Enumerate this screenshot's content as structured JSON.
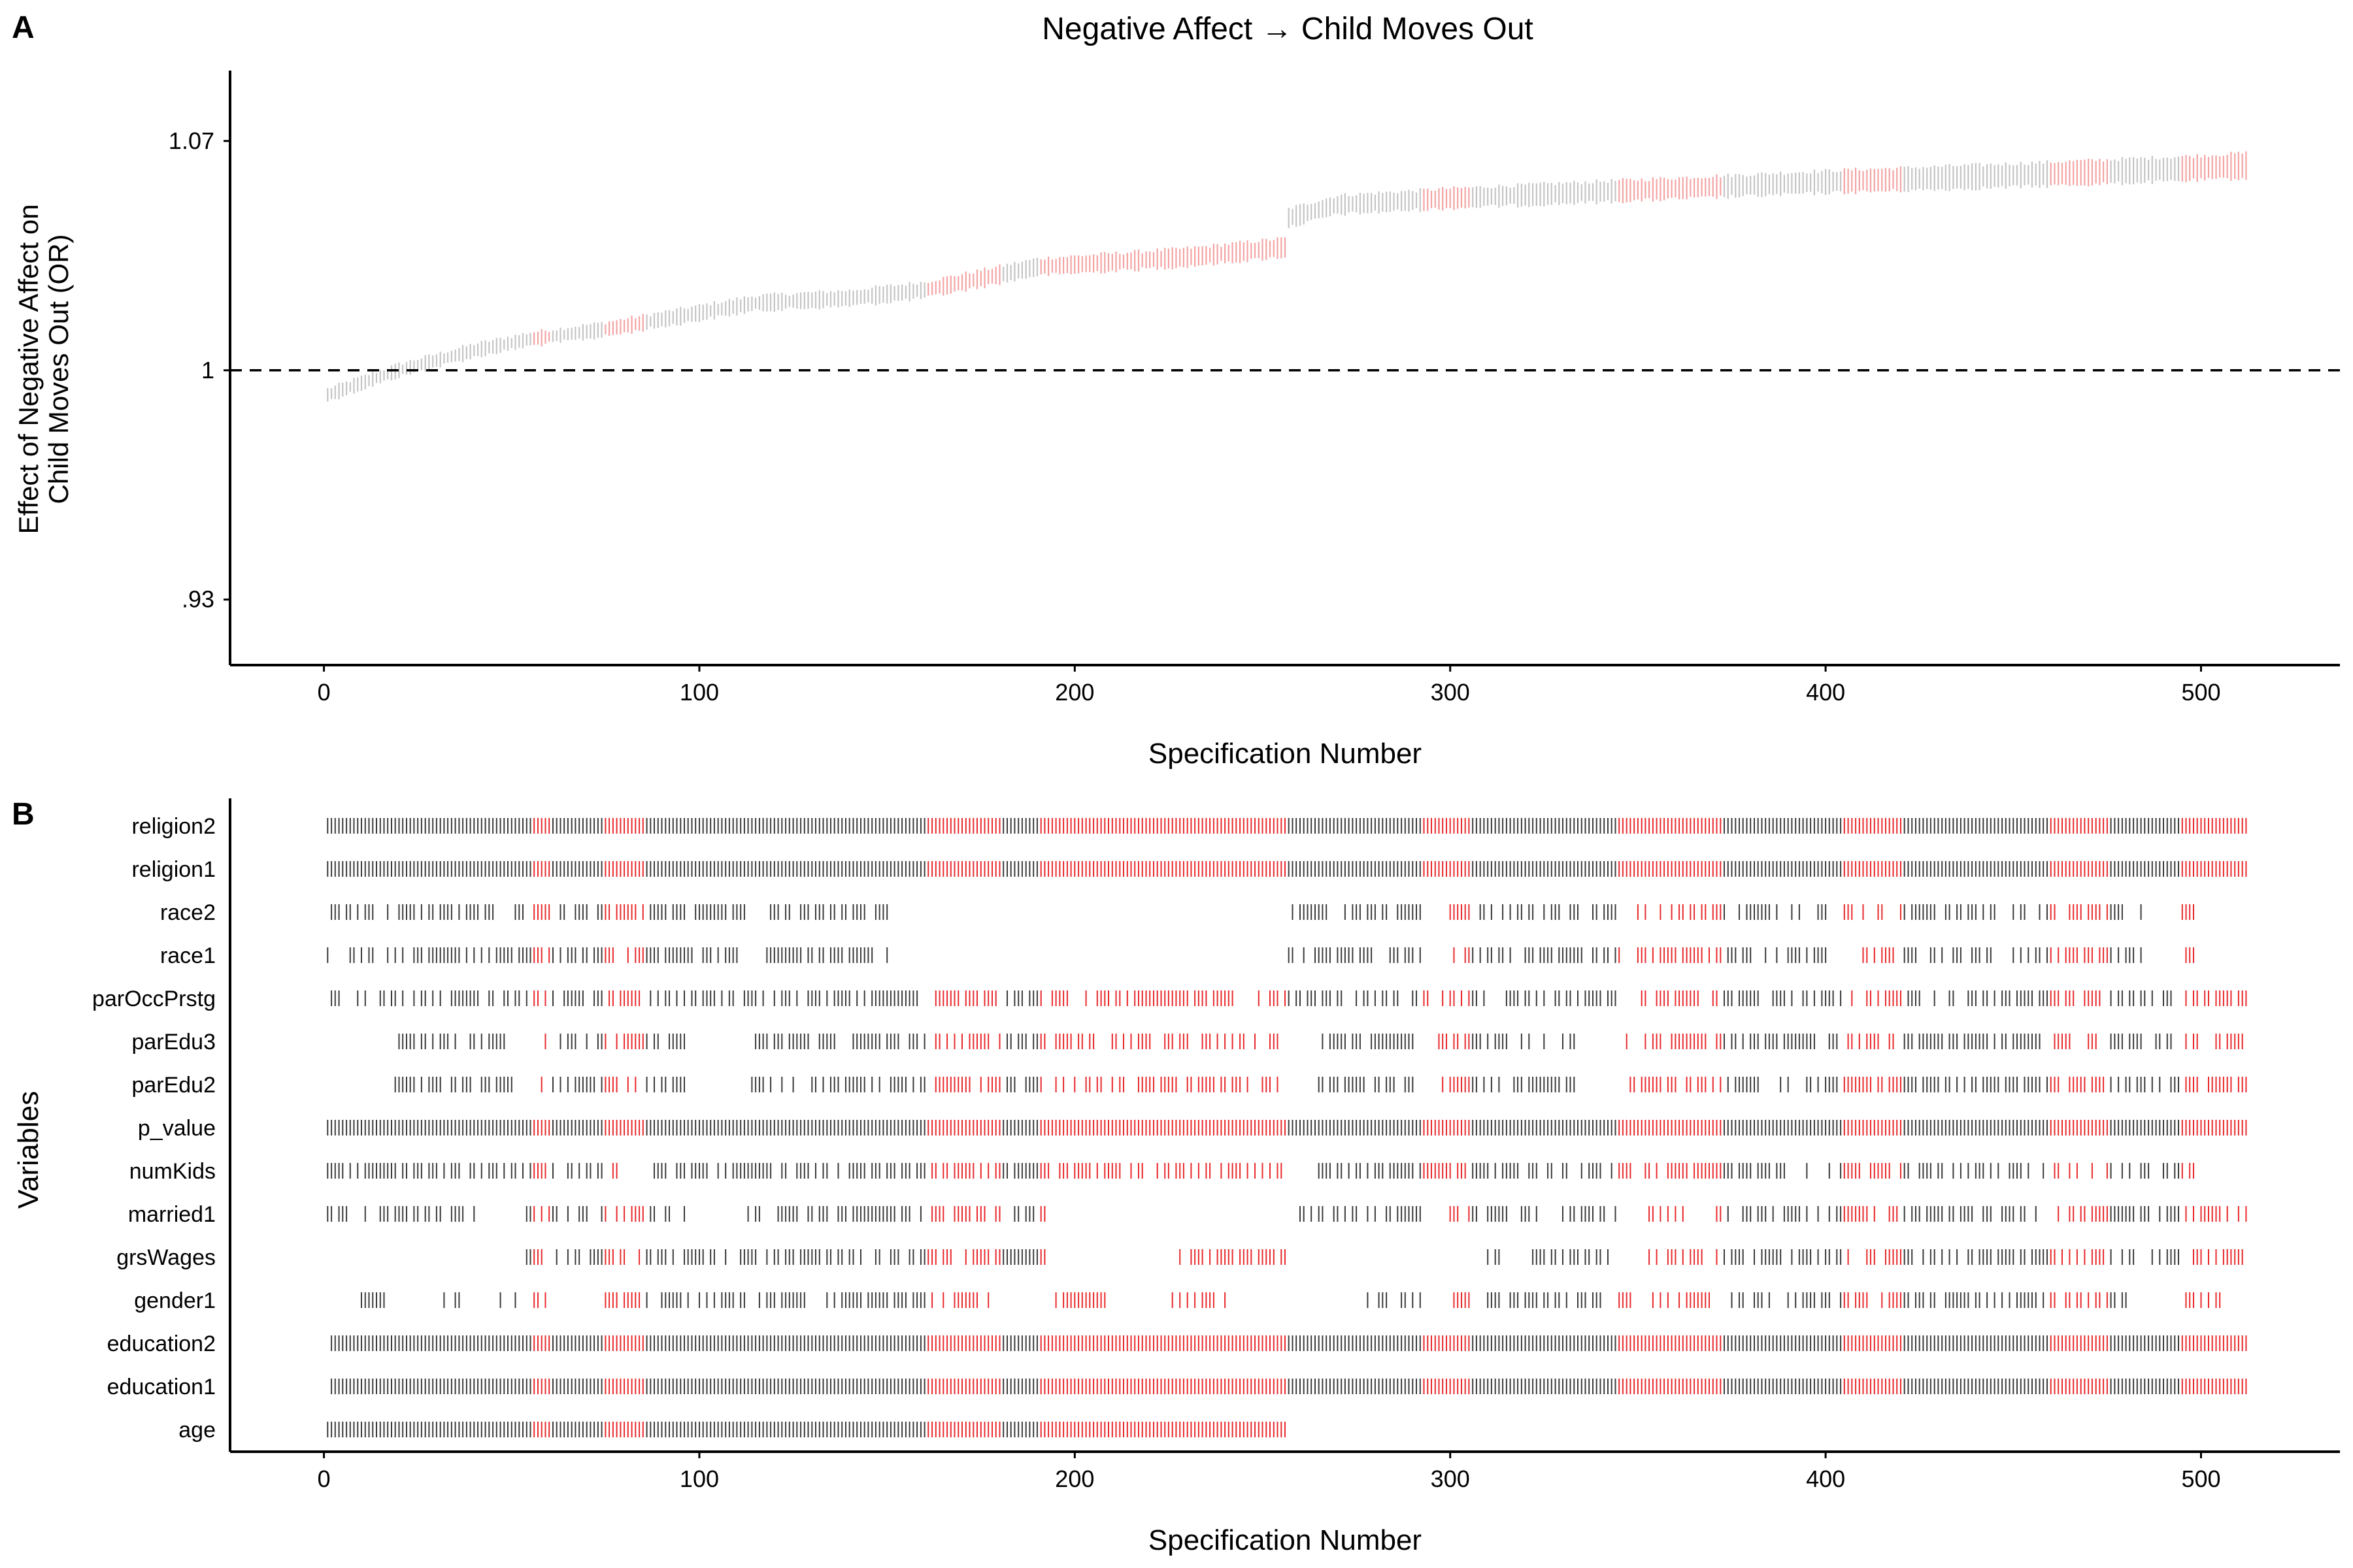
{
  "panels": {
    "a_label": "A",
    "b_label": "B"
  },
  "chart_data": [
    {
      "type": "scatter",
      "title": "Negative Affect → Child Moves Out",
      "xlabel": "Specification Number",
      "ylabel_lines": [
        "Effect of Negative Affect on",
        "Child Moves Out (OR)"
      ],
      "xlim": [
        -25,
        537
      ],
      "ylim": [
        0.91,
        1.0915
      ],
      "xticks": [
        0,
        100,
        200,
        300,
        400,
        500
      ],
      "yticks": [
        {
          "value": 0.93,
          "label": ".93"
        },
        {
          "value": 1.0,
          "label": "1"
        },
        {
          "value": 1.07,
          "label": "1.07"
        }
      ],
      "reference_line": {
        "y": 1.0,
        "style": "dashed"
      },
      "n_specifications": 512,
      "curve_knots": [
        [
          1,
          0.9925
        ],
        [
          20,
          1.0
        ],
        [
          40,
          1.006
        ],
        [
          55,
          1.0095
        ],
        [
          75,
          1.0125
        ],
        [
          95,
          1.0165
        ],
        [
          115,
          1.0205
        ],
        [
          140,
          1.022
        ],
        [
          160,
          1.0245
        ],
        [
          190,
          1.0315
        ],
        [
          230,
          1.0345
        ],
        [
          256,
          1.0375
        ],
        [
          257,
          1.0465
        ],
        [
          270,
          1.0505
        ],
        [
          300,
          1.0525
        ],
        [
          350,
          1.055
        ],
        [
          400,
          1.0575
        ],
        [
          450,
          1.0595
        ],
        [
          495,
          1.0615
        ],
        [
          512,
          1.0625
        ]
      ],
      "ci_halfwidth_range": [
        0.0012,
        0.0045
      ],
      "significant_ranges": [
        [
          56,
          60
        ],
        [
          75,
          85
        ],
        [
          161,
          180
        ],
        [
          191,
          256
        ],
        [
          293,
          305
        ],
        [
          345,
          372
        ],
        [
          405,
          420
        ],
        [
          460,
          475
        ],
        [
          495,
          512
        ]
      ],
      "colors": {
        "significant": "#f4a3a3",
        "nonsignificant": "#c4c4c4",
        "reference": "#000000"
      }
    },
    {
      "type": "heatmap",
      "xlabel": "Specification Number",
      "ylabel": "Variables",
      "xlim": [
        -25,
        537
      ],
      "xticks": [
        0,
        100,
        200,
        300,
        400,
        500
      ],
      "variables": [
        {
          "name": "religion2",
          "ranges": [
            [
              1,
              512
            ]
          ]
        },
        {
          "name": "religion1",
          "ranges": [
            [
              1,
              512
            ]
          ]
        },
        {
          "name": "race2",
          "ranges": [
            [
              1,
              112
            ],
            [
              118,
              150
            ],
            [
              257,
              292
            ],
            [
              300,
              345
            ],
            [
              350,
              400
            ],
            [
              405,
              445
            ],
            [
              450,
              485
            ],
            [
              495,
              498
            ]
          ]
        },
        {
          "name": "race1",
          "ranges": [
            [
              1,
              112
            ],
            [
              118,
              150
            ],
            [
              257,
              292
            ],
            [
              300,
              345
            ],
            [
              350,
              400
            ],
            [
              405,
              445
            ],
            [
              450,
              485
            ],
            [
              495,
              498
            ]
          ]
        },
        {
          "name": "parOccPrstg",
          "ranges": [
            [
              2,
              160
            ],
            [
              163,
              512
            ]
          ]
        },
        {
          "name": "parEdu3",
          "ranges": [
            [
              18,
              50
            ],
            [
              58,
              96
            ],
            [
              114,
              160
            ],
            [
              163,
              254
            ],
            [
              265,
              290
            ],
            [
              297,
              333
            ],
            [
              347,
              512
            ]
          ]
        },
        {
          "name": "parEdu2",
          "ranges": [
            [
              18,
              50
            ],
            [
              58,
              96
            ],
            [
              114,
              160
            ],
            [
              163,
              254
            ],
            [
              265,
              290
            ],
            [
              297,
              333
            ],
            [
              347,
              512
            ]
          ]
        },
        {
          "name": "p_value",
          "ranges": [
            [
              1,
              512
            ]
          ]
        },
        {
          "name": "numKids",
          "ranges": [
            [
              1,
              60
            ],
            [
              60,
              80
            ],
            [
              88,
              160
            ],
            [
              161,
              256
            ],
            [
              265,
              295
            ],
            [
              293,
              390
            ],
            [
              395,
              498
            ]
          ]
        },
        {
          "name": "married1",
          "ranges": [
            [
              1,
              40
            ],
            [
              53,
              97
            ],
            [
              113,
              192
            ],
            [
              260,
              292
            ],
            [
              300,
              325
            ],
            [
              330,
              345
            ],
            [
              352,
              362
            ],
            [
              370,
              512
            ]
          ]
        },
        {
          "name": "grsWages",
          "ranges": [
            [
              53,
              160
            ],
            [
              161,
              192
            ],
            [
              225,
              256
            ],
            [
              309,
              313
            ],
            [
              322,
              342
            ],
            [
              350,
              512
            ]
          ]
        },
        {
          "name": "gender1",
          "ranges": [
            [
              8,
              16
            ],
            [
              28,
              40
            ],
            [
              47,
              60
            ],
            [
              75,
              160
            ],
            [
              161,
              177
            ],
            [
              192,
              208
            ],
            [
              224,
              240
            ],
            [
              275,
              292
            ],
            [
              300,
              305
            ],
            [
              310,
              480
            ],
            [
              495,
              505
            ]
          ]
        },
        {
          "name": "education2",
          "ranges": [
            [
              2,
              512
            ]
          ]
        },
        {
          "name": "education1",
          "ranges": [
            [
              2,
              512
            ]
          ]
        },
        {
          "name": "age",
          "ranges": [
            [
              1,
              256
            ]
          ]
        }
      ],
      "colors": {
        "significant": "#e8282b",
        "nonsignificant": "#3a3a3a"
      }
    }
  ]
}
